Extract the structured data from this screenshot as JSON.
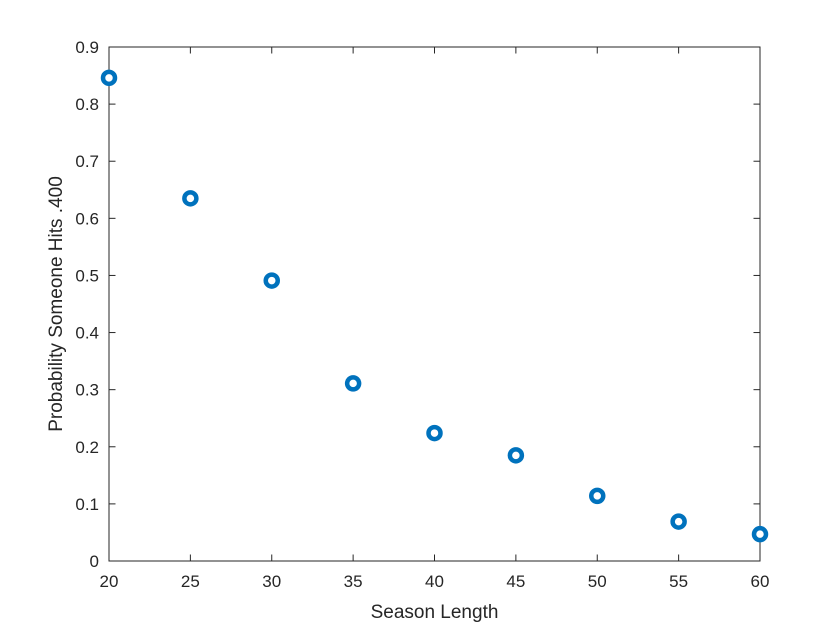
{
  "chart_data": {
    "type": "scatter",
    "xlabel": "Season Length",
    "ylabel": "Probability Someone Hits .400",
    "xlim": [
      20,
      60
    ],
    "ylim": [
      0,
      0.9
    ],
    "x_ticks": [
      20,
      25,
      30,
      35,
      40,
      45,
      50,
      55,
      60
    ],
    "x_tick_labels": [
      "20",
      "25",
      "30",
      "35",
      "40",
      "45",
      "50",
      "55",
      "60"
    ],
    "y_ticks": [
      0,
      0.1,
      0.2,
      0.3,
      0.4,
      0.5,
      0.6,
      0.7,
      0.8,
      0.9
    ],
    "y_tick_labels": [
      "0",
      "0.1",
      "0.2",
      "0.3",
      "0.4",
      "0.5",
      "0.6",
      "0.7",
      "0.8",
      "0.9"
    ],
    "grid": false,
    "legend": "none",
    "marker": "open-circle",
    "colors": {
      "marker": "#0072BD",
      "axis": "#262626"
    },
    "series": [
      {
        "x": [
          20,
          25,
          30,
          35,
          40,
          45,
          50,
          55,
          60
        ],
        "y": [
          0.846,
          0.635,
          0.491,
          0.311,
          0.224,
          0.185,
          0.114,
          0.069,
          0.047
        ]
      }
    ]
  }
}
